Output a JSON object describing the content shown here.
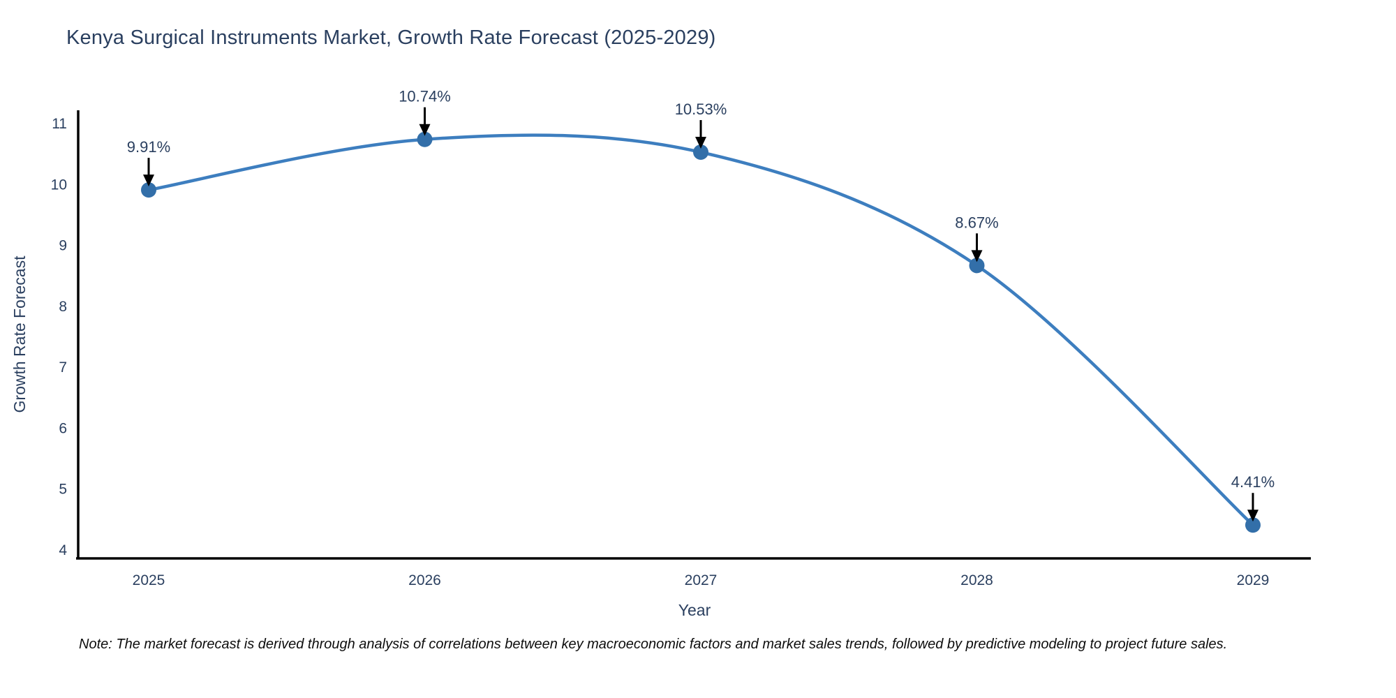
{
  "title": "Kenya Surgical Instruments Market, Growth Rate Forecast (2025-2029)",
  "note": "Note: The market forecast is derived through analysis of correlations between key macroeconomic factors and market sales trends, followed by predictive modeling to project future sales.",
  "colors": {
    "line": "#3d7ebf",
    "marker": "#336fa9",
    "text": "#2a3f5f",
    "axis": "#000000",
    "annotation_arrow": "#000000",
    "background": "#ffffff"
  },
  "chart_data": {
    "type": "line",
    "line_shape": "spline",
    "markers": true,
    "grid": false,
    "title": "Kenya Surgical Instruments Market, Growth Rate Forecast (2025-2029)",
    "xlabel": "Year",
    "ylabel": "Growth Rate Forecast",
    "x": [
      2025,
      2026,
      2027,
      2028,
      2029
    ],
    "series": [
      {
        "name": "Growth Rate Forecast",
        "values": [
          9.91,
          10.74,
          10.53,
          8.67,
          4.41
        ]
      }
    ],
    "point_labels": [
      "9.91%",
      "10.74%",
      "10.53%",
      "8.67%",
      "4.41%"
    ],
    "annotation_style": "arrow-down",
    "ylim": [
      4,
      11
    ],
    "yticks": [
      4,
      5,
      6,
      7,
      8,
      9,
      10,
      11
    ],
    "legend": "none"
  }
}
